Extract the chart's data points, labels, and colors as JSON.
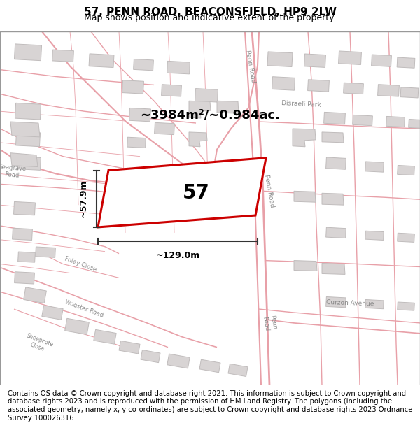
{
  "title_line1": "57, PENN ROAD, BEACONSFIELD, HP9 2LW",
  "title_line2": "Map shows position and indicative extent of the property.",
  "footer_text": "Contains OS data © Crown copyright and database right 2021. This information is subject to Crown copyright and database rights 2023 and is reproduced with the permission of HM Land Registry. The polygons (including the associated geometry, namely x, y co-ordinates) are subject to Crown copyright and database rights 2023 Ordnance Survey 100026316.",
  "area_label": "~3984m²/~0.984ac.",
  "width_label": "~129.0m",
  "height_label": "~57.9m",
  "plot_number": "57",
  "plot_outline_color": "#cc0000",
  "dim_line_color": "#333333",
  "road_color": "#e8a0a8",
  "building_fill": "#d8d4d4",
  "building_edge": "#c0bcbc",
  "title_fontsize": 11,
  "subtitle_fontsize": 9,
  "footer_fontsize": 7.2,
  "map_bg": "#ffffff",
  "title_bg": "#ffffff",
  "footer_bg": "#ffffff"
}
